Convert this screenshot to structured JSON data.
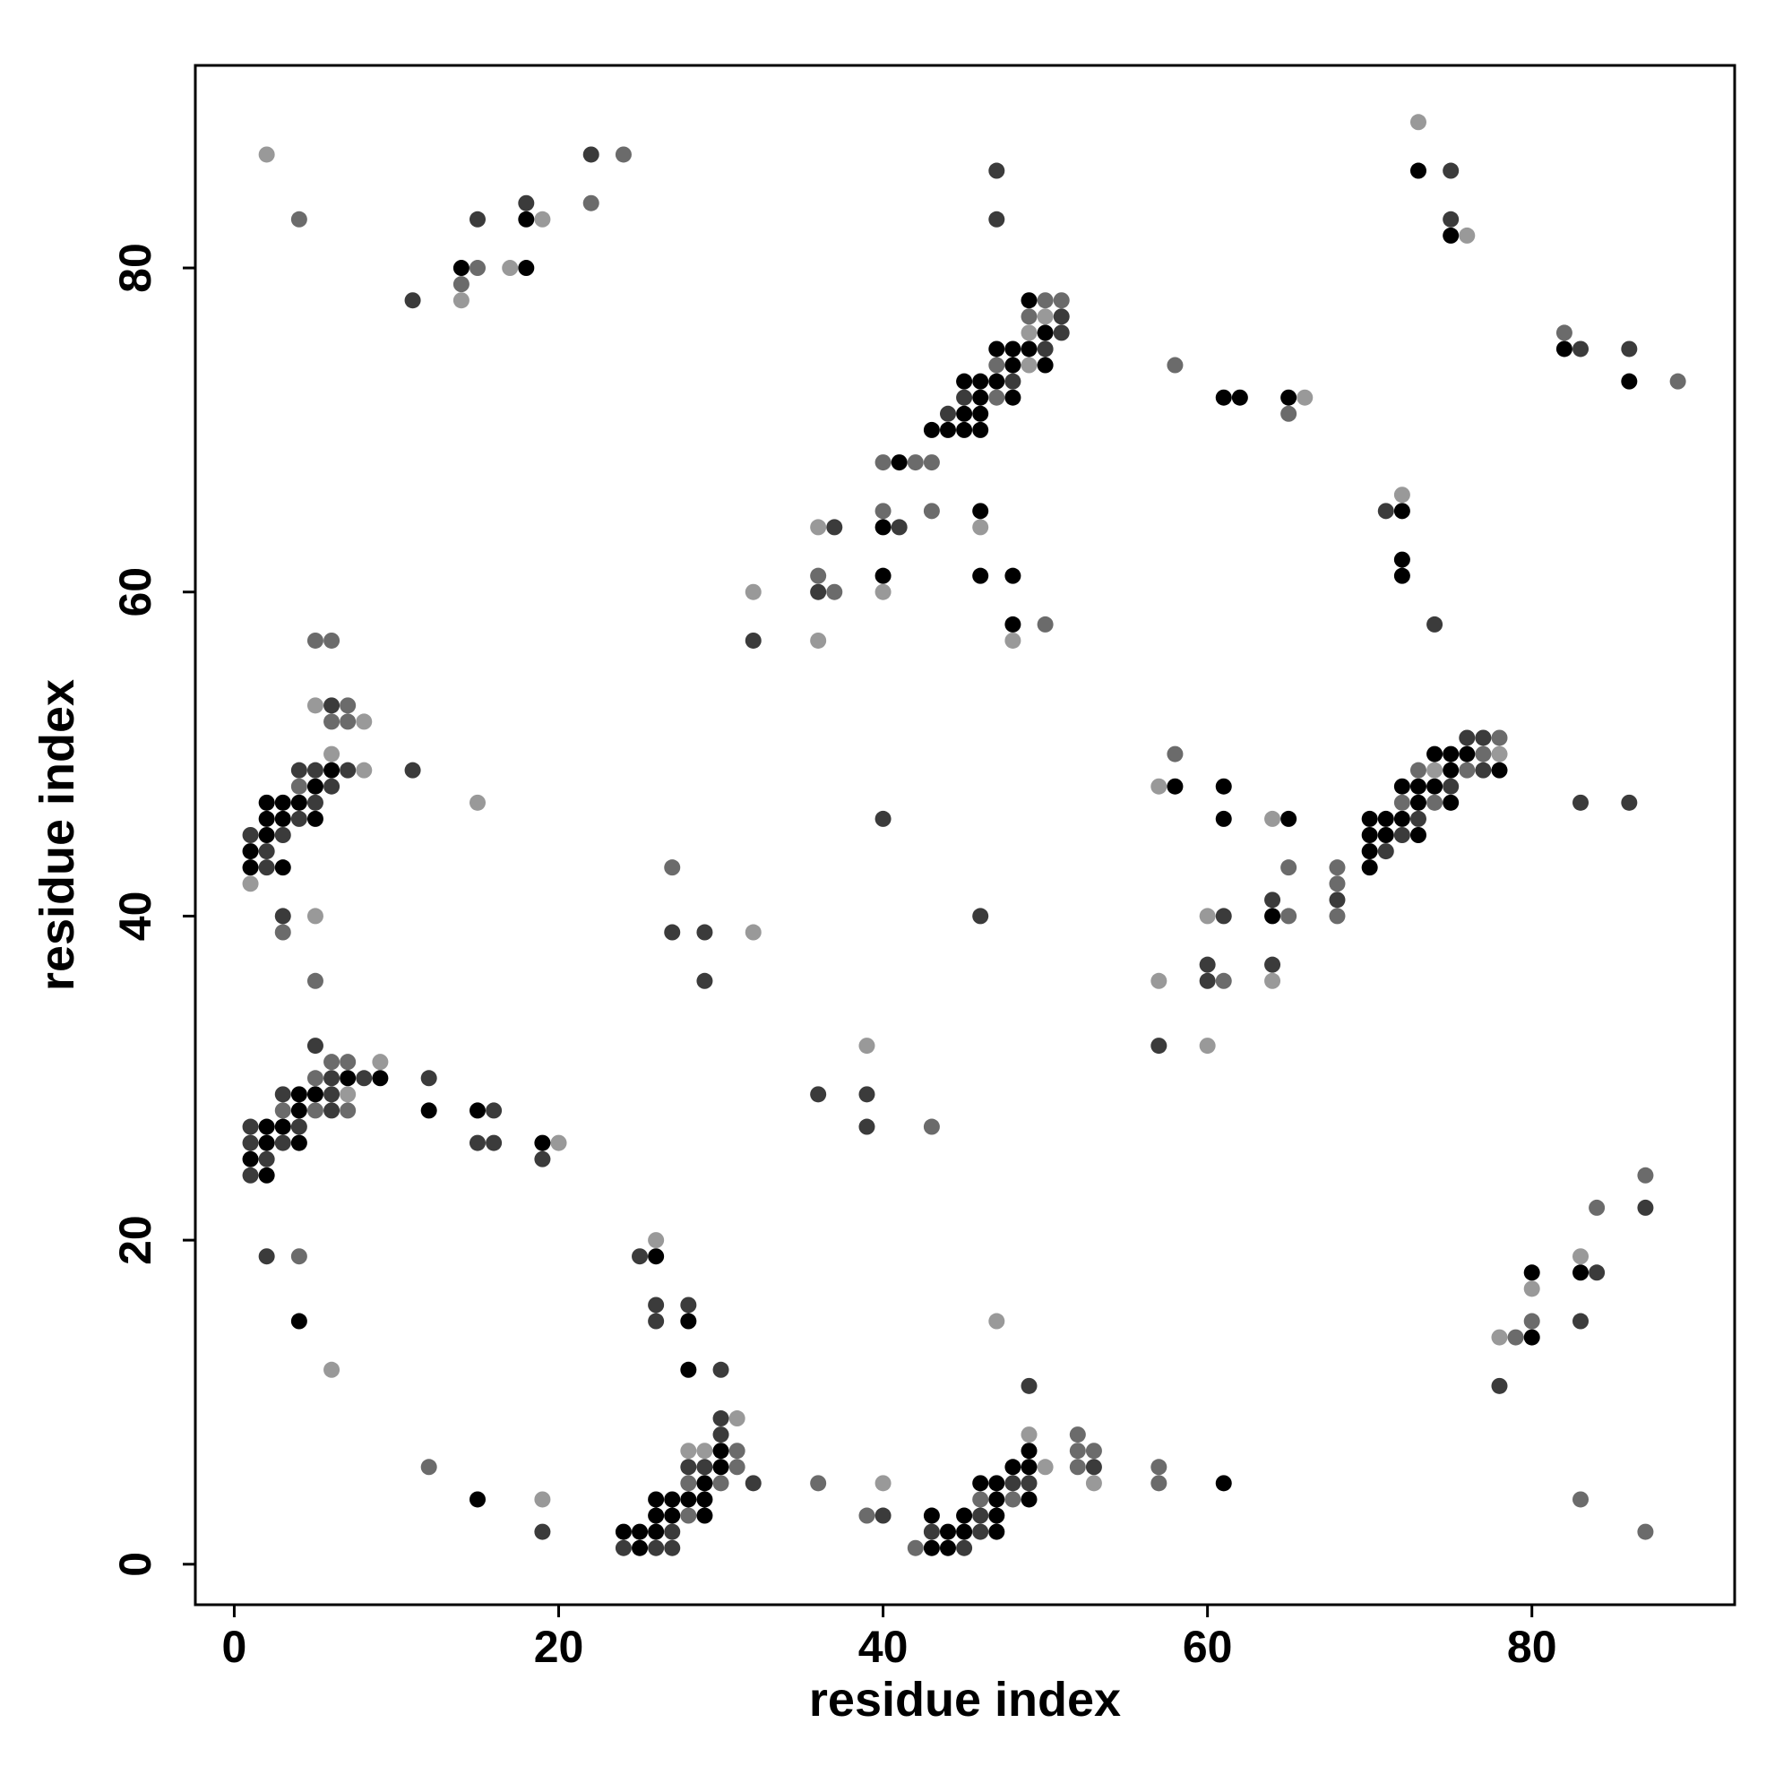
{
  "chart_data": {
    "type": "scatter",
    "x_label": "residue index",
    "y_label": "residue index",
    "xlim": [
      -2.4,
      92.5
    ],
    "ylim": [
      -2.5,
      92.5
    ],
    "xticks": [
      0,
      20,
      40,
      60,
      80
    ],
    "yticks": [
      0,
      20,
      40,
      60,
      80
    ],
    "grid": false,
    "series": [
      {
        "color": "#000000",
        "x": [
          73,
          18,
          75,
          14,
          18,
          49,
          50,
          47,
          48,
          49,
          82,
          48,
          50,
          45,
          46,
          47,
          86,
          46,
          48,
          61,
          62,
          65,
          45,
          46,
          43,
          44,
          45,
          46,
          41,
          46,
          72,
          40,
          72,
          40,
          46,
          48,
          72,
          48,
          74,
          75,
          76,
          6,
          75,
          78,
          5,
          58,
          61,
          72,
          73,
          74,
          2,
          3,
          4,
          73,
          75,
          2,
          3,
          5,
          61,
          65,
          70,
          71,
          72,
          2,
          70,
          71,
          73,
          1,
          70,
          1,
          3,
          70,
          64,
          7,
          9,
          4,
          5,
          4,
          12,
          15,
          2,
          3,
          2,
          4,
          19,
          1,
          2,
          26,
          80,
          83,
          4,
          28,
          80,
          28,
          30,
          49,
          30,
          48,
          49,
          29,
          46,
          47,
          61,
          15,
          26,
          27,
          28,
          29,
          47,
          49,
          26,
          27,
          29,
          43,
          45,
          47,
          24,
          25,
          26,
          44,
          45,
          47,
          25,
          43,
          44
        ],
        "values": [
          86,
          83,
          82,
          80,
          80,
          78,
          76,
          75,
          75,
          75,
          75,
          74,
          74,
          73,
          73,
          73,
          73,
          72,
          72,
          72,
          72,
          72,
          71,
          71,
          70,
          70,
          70,
          70,
          68,
          65,
          65,
          64,
          62,
          61,
          61,
          61,
          61,
          58,
          50,
          50,
          50,
          49,
          49,
          49,
          48,
          48,
          48,
          48,
          48,
          48,
          47,
          47,
          47,
          47,
          47,
          46,
          46,
          46,
          46,
          46,
          46,
          46,
          46,
          45,
          45,
          45,
          45,
          44,
          44,
          43,
          43,
          43,
          40,
          30,
          30,
          29,
          29,
          28,
          28,
          28,
          27,
          27,
          26,
          26,
          26,
          25,
          24,
          19,
          18,
          18,
          15,
          15,
          14,
          12,
          7,
          7,
          6,
          6,
          6,
          5,
          5,
          5,
          5,
          4,
          4,
          4,
          4,
          4,
          4,
          4,
          3,
          3,
          3,
          3,
          3,
          3,
          2,
          2,
          2,
          2,
          2,
          2,
          1,
          1,
          1
        ]
      },
      {
        "color": "#3b3b3b",
        "x": [
          22,
          47,
          75,
          18,
          15,
          47,
          75,
          11,
          51,
          51,
          50,
          83,
          86,
          48,
          45,
          44,
          71,
          37,
          41,
          36,
          74,
          32,
          6,
          76,
          77,
          4,
          5,
          7,
          11,
          77,
          6,
          75,
          5,
          83,
          86,
          4,
          40,
          73,
          1,
          3,
          72,
          2,
          71,
          2,
          64,
          68,
          3,
          46,
          61,
          27,
          29,
          60,
          64,
          29,
          60,
          5,
          57,
          6,
          8,
          12,
          3,
          6,
          36,
          39,
          6,
          16,
          1,
          4,
          39,
          1,
          3,
          15,
          16,
          2,
          19,
          1,
          87,
          2,
          25,
          84,
          26,
          28,
          26,
          83,
          30,
          49,
          78,
          30,
          30,
          28,
          29,
          53,
          32,
          48,
          49,
          40,
          46,
          19,
          27,
          43,
          46,
          24,
          26,
          27,
          45
        ],
        "values": [
          87,
          86,
          86,
          84,
          83,
          83,
          83,
          78,
          77,
          76,
          75,
          75,
          75,
          73,
          72,
          71,
          65,
          64,
          64,
          60,
          58,
          57,
          53,
          51,
          51,
          49,
          49,
          49,
          49,
          49,
          48,
          48,
          47,
          47,
          47,
          46,
          46,
          46,
          45,
          45,
          45,
          44,
          44,
          43,
          41,
          41,
          40,
          40,
          40,
          39,
          39,
          37,
          37,
          36,
          36,
          32,
          32,
          30,
          30,
          30,
          29,
          29,
          29,
          29,
          28,
          28,
          27,
          27,
          27,
          26,
          26,
          26,
          26,
          25,
          25,
          24,
          22,
          19,
          19,
          18,
          16,
          16,
          15,
          15,
          12,
          11,
          11,
          9,
          8,
          6,
          6,
          6,
          5,
          5,
          5,
          3,
          3,
          2,
          2,
          2,
          2,
          1,
          1,
          1,
          1
        ]
      },
      {
        "color": "#6b6b6b",
        "x": [
          22,
          24,
          4,
          15,
          14,
          50,
          51,
          49,
          82,
          47,
          58,
          89,
          47,
          65,
          40,
          42,
          43,
          40,
          43,
          36,
          37,
          50,
          5,
          6,
          7,
          6,
          7,
          78,
          58,
          77,
          73,
          76,
          4,
          72,
          74,
          27,
          65,
          68,
          68,
          65,
          68,
          3,
          5,
          61,
          6,
          7,
          5,
          3,
          5,
          7,
          43,
          87,
          84,
          4,
          80,
          79,
          52,
          31,
          52,
          53,
          12,
          31,
          52,
          57,
          28,
          30,
          36,
          57,
          46,
          48,
          83,
          28,
          39,
          87,
          42
        ],
        "values": [
          84,
          87,
          83,
          80,
          79,
          78,
          78,
          77,
          76,
          74,
          74,
          73,
          72,
          71,
          68,
          68,
          68,
          65,
          65,
          61,
          60,
          58,
          57,
          57,
          53,
          52,
          52,
          51,
          50,
          50,
          49,
          49,
          48,
          47,
          47,
          43,
          43,
          43,
          42,
          40,
          40,
          39,
          36,
          36,
          31,
          31,
          30,
          28,
          28,
          28,
          27,
          24,
          22,
          19,
          15,
          14,
          8,
          7,
          7,
          7,
          6,
          6,
          6,
          6,
          5,
          5,
          5,
          5,
          4,
          4,
          4,
          3,
          3,
          2,
          1
        ]
      },
      {
        "color": "#999999",
        "x": [
          73,
          2,
          19,
          76,
          17,
          14,
          50,
          49,
          49,
          66,
          72,
          36,
          46,
          32,
          40,
          36,
          48,
          5,
          8,
          6,
          78,
          8,
          74,
          57,
          15,
          64,
          1,
          5,
          60,
          32,
          57,
          64,
          39,
          60,
          9,
          7,
          20,
          26,
          83,
          80,
          47,
          78,
          6,
          31,
          49,
          28,
          29,
          50,
          40,
          53,
          19
        ],
        "values": [
          89,
          87,
          83,
          82,
          80,
          78,
          77,
          76,
          74,
          72,
          66,
          64,
          64,
          60,
          60,
          57,
          57,
          53,
          52,
          50,
          50,
          49,
          49,
          48,
          47,
          46,
          42,
          40,
          40,
          39,
          36,
          36,
          32,
          32,
          31,
          29,
          26,
          20,
          19,
          17,
          15,
          14,
          12,
          9,
          8,
          7,
          7,
          6,
          5,
          5,
          4
        ]
      }
    ]
  }
}
